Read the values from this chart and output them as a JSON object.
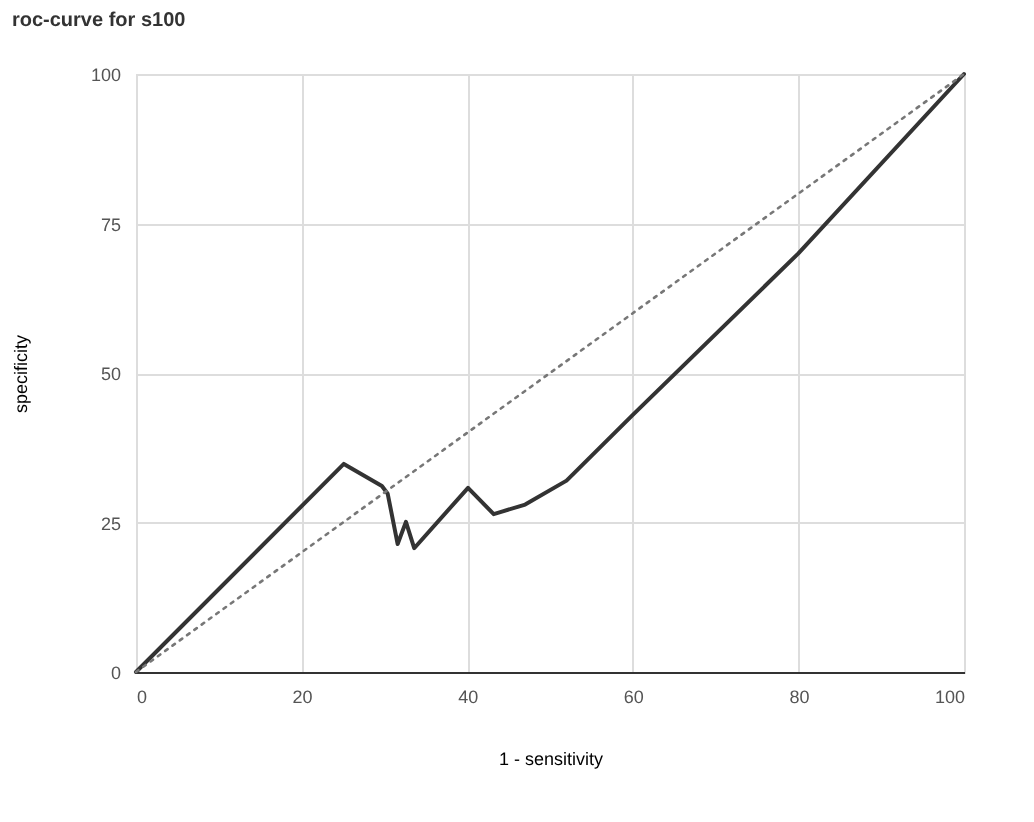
{
  "chart_data": {
    "type": "line",
    "title": "roc-curve for s100",
    "xlabel": "1 - sensitivity",
    "ylabel": "specificity",
    "series": [
      {
        "color": "#333333",
        "line_style": "solid",
        "x": [
          0,
          25.1,
          29.7,
          30.4,
          31.6,
          32.6,
          33.6,
          40.1,
          43.2,
          47,
          52,
          60,
          80,
          100
        ],
        "values": [
          0,
          34.8,
          31.1,
          29.8,
          21.4,
          25.1,
          20.7,
          30.8,
          26.4,
          28,
          32,
          43,
          70,
          100
        ]
      },
      {
        "color": "#777777",
        "line_style": "dotted",
        "x": [
          0,
          100
        ],
        "values": [
          0,
          100
        ]
      }
    ],
    "xlim": [
      0,
      100
    ],
    "xticks": [
      0,
      20,
      40,
      60,
      80,
      100
    ],
    "ylim": [
      0,
      100
    ],
    "yticks": [
      0,
      25,
      50,
      75,
      100
    ],
    "grid": true,
    "marker": "none"
  }
}
